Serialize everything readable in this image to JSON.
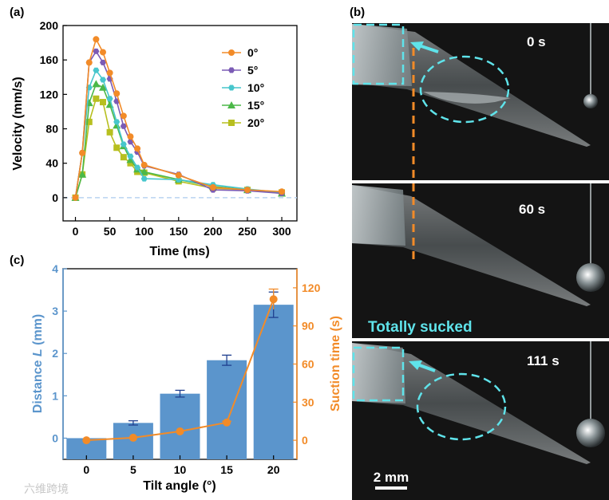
{
  "panel_labels": {
    "a": "(a)",
    "b": "(b)",
    "c": "(c)"
  },
  "colors": {
    "c0": "#f28b28",
    "c5": "#7b5bb5",
    "c10": "#47c6cc",
    "c15": "#4bb848",
    "c20": "#b7bf1f",
    "bar": "#5b95cc",
    "suction": "#f28b28",
    "dashed_cyan": "#5fe3ea",
    "zero_line": "#b9d3f0"
  },
  "chart_data": [
    {
      "type": "line",
      "title": "",
      "xlabel": "Time (ms)",
      "ylabel": "Velocity (mm/s)",
      "xlim": [
        -18,
        322
      ],
      "ylim": [
        -27,
        200
      ],
      "xticks": [
        0,
        50,
        100,
        150,
        200,
        250,
        300
      ],
      "yticks": [
        0,
        40,
        80,
        120,
        160,
        200
      ],
      "legend_position": "top-right",
      "series": [
        {
          "name": "0°",
          "color_key": "c0",
          "marker": "circle",
          "x": [
            0,
            10,
            20,
            30,
            40,
            50,
            60,
            70,
            80,
            90,
            100,
            150,
            200,
            250,
            300
          ],
          "y": [
            0,
            52,
            157,
            184,
            169,
            145,
            121,
            95,
            71,
            57,
            38,
            26,
            12,
            9,
            7
          ]
        },
        {
          "name": "5°",
          "color_key": "c5",
          "marker": "hexagon",
          "x": [
            0,
            10,
            20,
            30,
            40,
            50,
            60,
            70,
            80,
            90,
            100,
            150,
            200,
            250,
            300
          ],
          "y": [
            0,
            52,
            157,
            170,
            157,
            138,
            112,
            83,
            65,
            53,
            37,
            27,
            9,
            8,
            5
          ]
        },
        {
          "name": "10°",
          "color_key": "c10",
          "marker": "hexagon",
          "x": [
            0,
            10,
            20,
            30,
            40,
            50,
            60,
            70,
            80,
            90,
            100,
            150,
            200,
            250,
            300
          ],
          "y": [
            0,
            52,
            128,
            148,
            137,
            115,
            88,
            62,
            48,
            35,
            22,
            21,
            15,
            10,
            6
          ]
        },
        {
          "name": "15°",
          "color_key": "c15",
          "marker": "triangle",
          "x": [
            0,
            10,
            20,
            30,
            40,
            50,
            60,
            70,
            80,
            90,
            100,
            150,
            200,
            250,
            300
          ],
          "y": [
            0,
            27,
            110,
            132,
            128,
            108,
            84,
            60,
            44,
            33,
            30,
            21,
            13,
            9,
            5
          ]
        },
        {
          "name": "20°",
          "color_key": "c20",
          "marker": "square",
          "x": [
            0,
            10,
            20,
            30,
            40,
            50,
            60,
            70,
            80,
            90,
            100,
            150,
            200,
            250,
            300
          ],
          "y": [
            0,
            27,
            88,
            115,
            111,
            76,
            58,
            47,
            40,
            30,
            29,
            19,
            11,
            9,
            6
          ]
        }
      ]
    },
    {
      "type": "bar",
      "title": "",
      "xlabel": "Tilt angle (°)",
      "ylabel": "Distance L (mm)",
      "ylabel_main": "Distance ",
      "ylabel_italic": "L",
      "ylabel_unit": " (mm)",
      "categories": [
        "0",
        "5",
        "10",
        "15",
        "20"
      ],
      "values": [
        0.0,
        0.36,
        1.05,
        1.84,
        3.15
      ],
      "errors": [
        0.0,
        0.05,
        0.08,
        0.12,
        0.3
      ],
      "ylim": [
        -0.5,
        4
      ],
      "yticks": [
        0,
        1,
        2,
        3,
        4
      ],
      "y2label": "Suction time (s)",
      "y2lim": [
        -15,
        135
      ],
      "y2ticks": [
        0,
        30,
        60,
        90,
        120
      ],
      "series": [
        {
          "name": "Distance L",
          "axis": "left",
          "values": [
            0.0,
            0.36,
            1.05,
            1.84,
            3.15
          ]
        },
        {
          "name": "Suction time",
          "axis": "right",
          "values": [
            0,
            2,
            7,
            14,
            111
          ],
          "errors": [
            0,
            0,
            0,
            1,
            8
          ]
        }
      ]
    }
  ],
  "photos": {
    "frames": [
      {
        "time_label": "0 s"
      },
      {
        "time_label": "60 s",
        "caption": "Totally sucked"
      },
      {
        "time_label": "111 s"
      }
    ],
    "scale_bar": "2 mm"
  },
  "watermark": "六维跨境"
}
